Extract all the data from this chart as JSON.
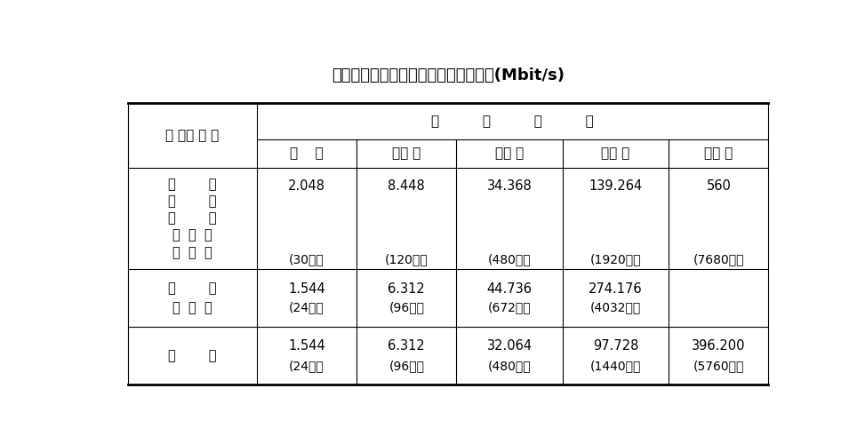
{
  "title": "脉码调制的群路复用等级及其比特率表(Mbit/s)",
  "col_header_span": "复          用          等          级",
  "col_header_label": "国 别、 地 区",
  "col_headers": [
    "基    群",
    "二次 群",
    "三次 群",
    "四次 群",
    "五次 群"
  ],
  "rows": [
    {
      "label_lines": [
        "中        国",
        "欧        洲",
        "非        洲",
        "南  美  洲",
        "大  洋  洲"
      ],
      "value_lines": [
        [
          "2.048",
          "(30路）"
        ],
        [
          "8.448",
          "(120路）"
        ],
        [
          "34.368",
          "(480路）"
        ],
        [
          "139.264",
          "(1920路）"
        ],
        [
          "560",
          "(7680路）"
        ]
      ]
    },
    {
      "label_lines": [
        "美        国",
        "加  拿  大"
      ],
      "value_lines": [
        [
          "1.544",
          "(24路）"
        ],
        [
          "6.312",
          "(96路）"
        ],
        [
          "44.736",
          "(672路）"
        ],
        [
          "274.176",
          "(4032路）"
        ],
        null
      ]
    },
    {
      "label_lines": [
        "日        本"
      ],
      "value_lines": [
        [
          "1.544",
          "(24路）"
        ],
        [
          "6.312",
          "(96路）"
        ],
        [
          "32.064",
          "(480路）"
        ],
        [
          "97.728",
          "(1440路）"
        ],
        [
          "396.200",
          "(5760路）"
        ]
      ]
    }
  ],
  "bg_color": "#ffffff",
  "text_color": "#000000",
  "line_color": "#000000",
  "title_fontsize": 13,
  "header_fontsize": 11,
  "cell_fontsize": 10.5
}
